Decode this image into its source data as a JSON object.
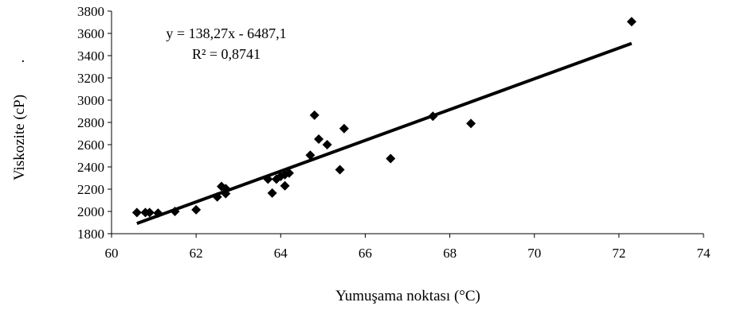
{
  "chart_data": {
    "type": "scatter",
    "xlabel": "Yumuşama noktası (°C)",
    "ylabel": "Viskozite (cP)",
    "ylabel_suffix": ".",
    "xlim": [
      60,
      74
    ],
    "ylim": [
      1800,
      3800
    ],
    "x_ticks": [
      "60",
      "62",
      "64",
      "66",
      "68",
      "70",
      "72",
      "74"
    ],
    "y_ticks": [
      "1800",
      "2000",
      "2200",
      "2400",
      "2600",
      "2800",
      "3000",
      "3200",
      "3400",
      "3600",
      "3800"
    ],
    "grid": false,
    "marker": "diamond",
    "series": [
      {
        "points": [
          [
            60.6,
            1990
          ],
          [
            60.8,
            1990
          ],
          [
            60.9,
            1990
          ],
          [
            61.1,
            1985
          ],
          [
            61.5,
            2000
          ],
          [
            62.0,
            2015
          ],
          [
            62.5,
            2130
          ],
          [
            62.6,
            2225
          ],
          [
            62.7,
            2205
          ],
          [
            62.7,
            2160
          ],
          [
            63.7,
            2290
          ],
          [
            63.8,
            2165
          ],
          [
            63.9,
            2290
          ],
          [
            64.0,
            2315
          ],
          [
            64.1,
            2230
          ],
          [
            64.1,
            2330
          ],
          [
            64.2,
            2345
          ],
          [
            64.7,
            2505
          ],
          [
            64.8,
            2865
          ],
          [
            64.9,
            2650
          ],
          [
            65.1,
            2600
          ],
          [
            65.4,
            2375
          ],
          [
            65.5,
            2745
          ],
          [
            66.6,
            2475
          ],
          [
            67.6,
            2855
          ],
          [
            68.5,
            2790
          ],
          [
            72.3,
            3705
          ]
        ]
      }
    ],
    "trendline": {
      "slope": 138.27,
      "intercept": -6487.1,
      "x_range": [
        60.6,
        72.3
      ],
      "equation": "y = 138,27x - 6487,1",
      "r_squared": "R² = 0,8741"
    }
  }
}
